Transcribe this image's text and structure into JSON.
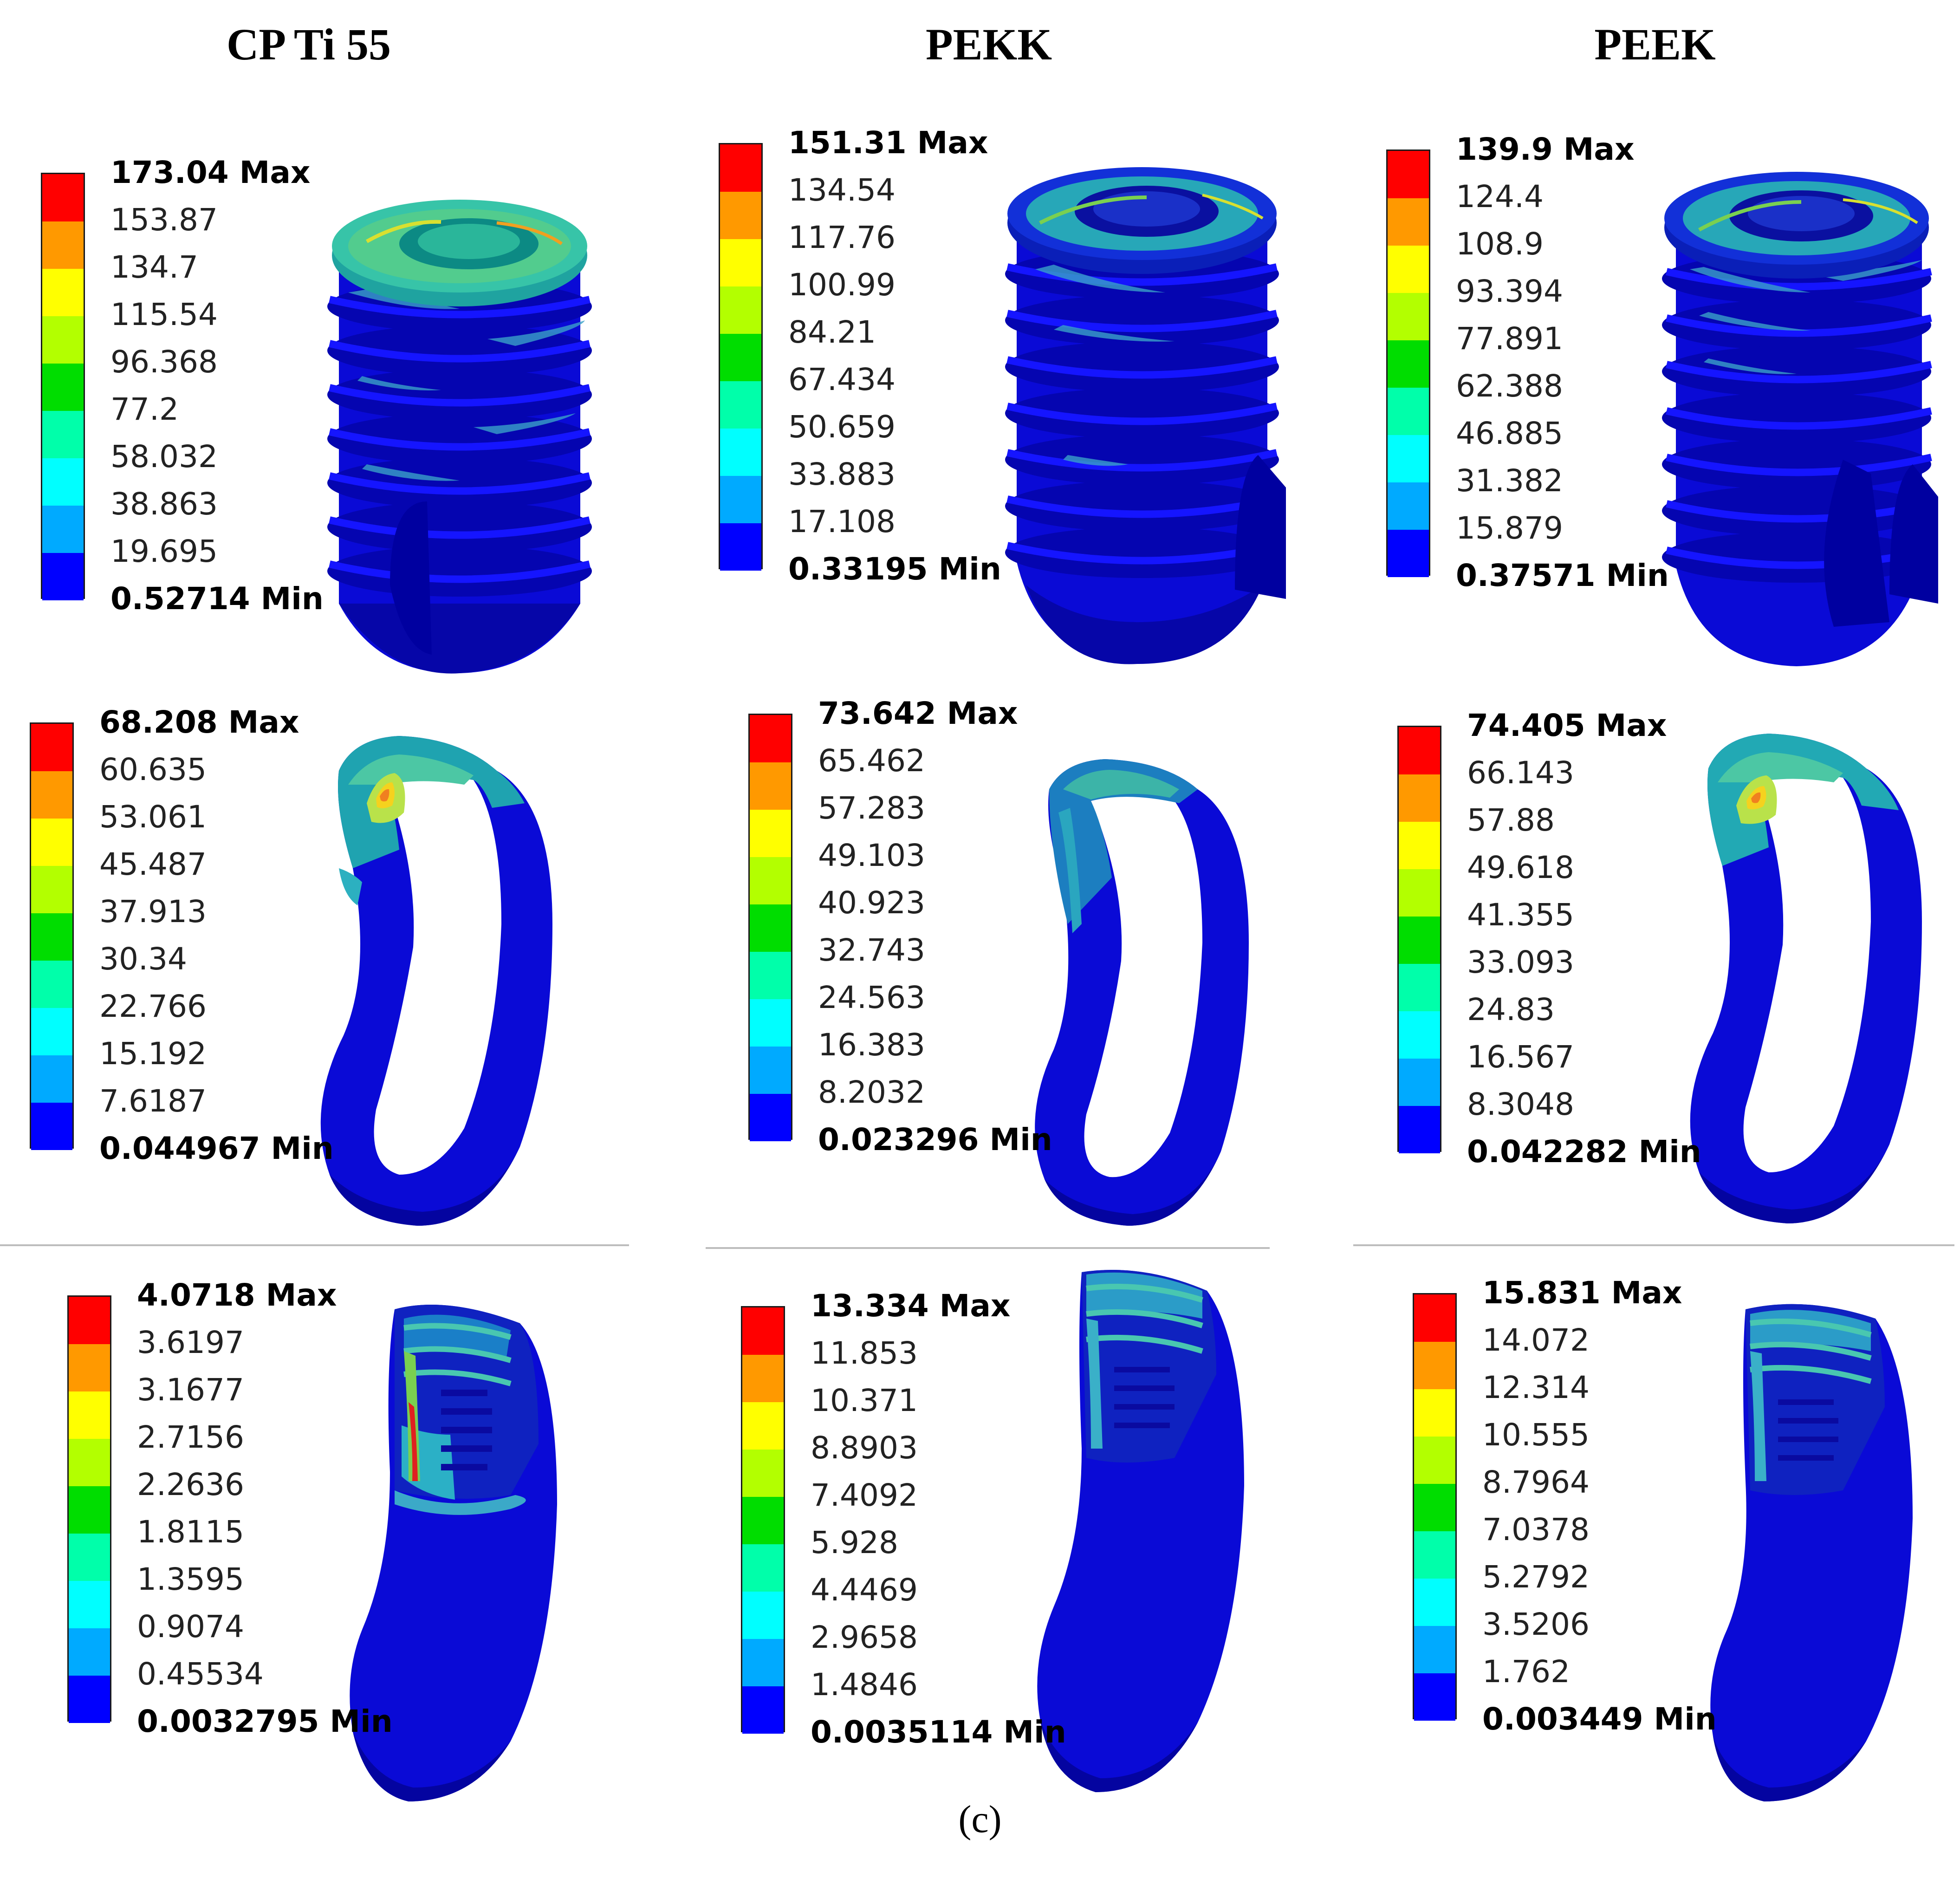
{
  "columns": [
    {
      "title": "CP Ti 55"
    },
    {
      "title": "PEKK"
    },
    {
      "title": "PEEK"
    }
  ],
  "colormap": [
    "#ff0000",
    "#ff9900",
    "#ffff00",
    "#b3ff00",
    "#00dd00",
    "#00ffaa",
    "#00ffff",
    "#00aaff",
    "#0000ff"
  ],
  "panels": [
    {
      "row": "implant",
      "column": "CP Ti 55",
      "max_label": "173.04 Max",
      "ticks": [
        "153.87",
        "134.7",
        "115.54",
        "96.368",
        "77.2",
        "58.032",
        "38.863",
        "19.695"
      ],
      "min_label": "0.52714 Min"
    },
    {
      "row": "implant",
      "column": "PEKK",
      "max_label": "151.31 Max",
      "ticks": [
        "134.54",
        "117.76",
        "100.99",
        "84.21",
        "67.434",
        "50.659",
        "33.883",
        "17.108"
      ],
      "min_label": "0.33195 Min"
    },
    {
      "row": "implant",
      "column": "PEEK",
      "max_label": "139.9 Max",
      "ticks": [
        "124.4",
        "108.9",
        "93.394",
        "77.891",
        "62.388",
        "46.885",
        "31.382",
        "15.879"
      ],
      "min_label": "0.37571 Min"
    },
    {
      "row": "cortical-bone",
      "column": "CP Ti 55",
      "max_label": "68.208 Max",
      "ticks": [
        "60.635",
        "53.061",
        "45.487",
        "37.913",
        "30.34",
        "22.766",
        "15.192",
        "7.6187"
      ],
      "min_label": "0.044967 Min"
    },
    {
      "row": "cortical-bone",
      "column": "PEKK",
      "max_label": "73.642 Max",
      "ticks": [
        "65.462",
        "57.283",
        "49.103",
        "40.923",
        "32.743",
        "24.563",
        "16.383",
        "8.2032"
      ],
      "min_label": "0.023296 Min"
    },
    {
      "row": "cortical-bone",
      "column": "PEEK",
      "max_label": "74.405 Max",
      "ticks": [
        "66.143",
        "57.88",
        "49.618",
        "41.355",
        "33.093",
        "24.83",
        "16.567",
        "8.3048"
      ],
      "min_label": "0.042282 Min"
    },
    {
      "row": "cancellous-bone",
      "column": "CP Ti 55",
      "max_label": "4.0718 Max",
      "ticks": [
        "3.6197",
        "3.1677",
        "2.7156",
        "2.2636",
        "1.8115",
        "1.3595",
        "0.9074",
        "0.45534"
      ],
      "min_label": "0.0032795 Min"
    },
    {
      "row": "cancellous-bone",
      "column": "PEKK",
      "max_label": "13.334 Max",
      "ticks": [
        "11.853",
        "10.371",
        "8.8903",
        "7.4092",
        "5.928",
        "4.4469",
        "2.9658",
        "1.4846"
      ],
      "min_label": "0.0035114 Min"
    },
    {
      "row": "cancellous-bone",
      "column": "PEEK",
      "max_label": "15.831 Max",
      "ticks": [
        "14.072",
        "12.314",
        "10.555",
        "8.7964",
        "7.0378",
        "5.2792",
        "3.5206",
        "1.762"
      ],
      "min_label": "0.003449 Min"
    }
  ],
  "caption": "(c)"
}
